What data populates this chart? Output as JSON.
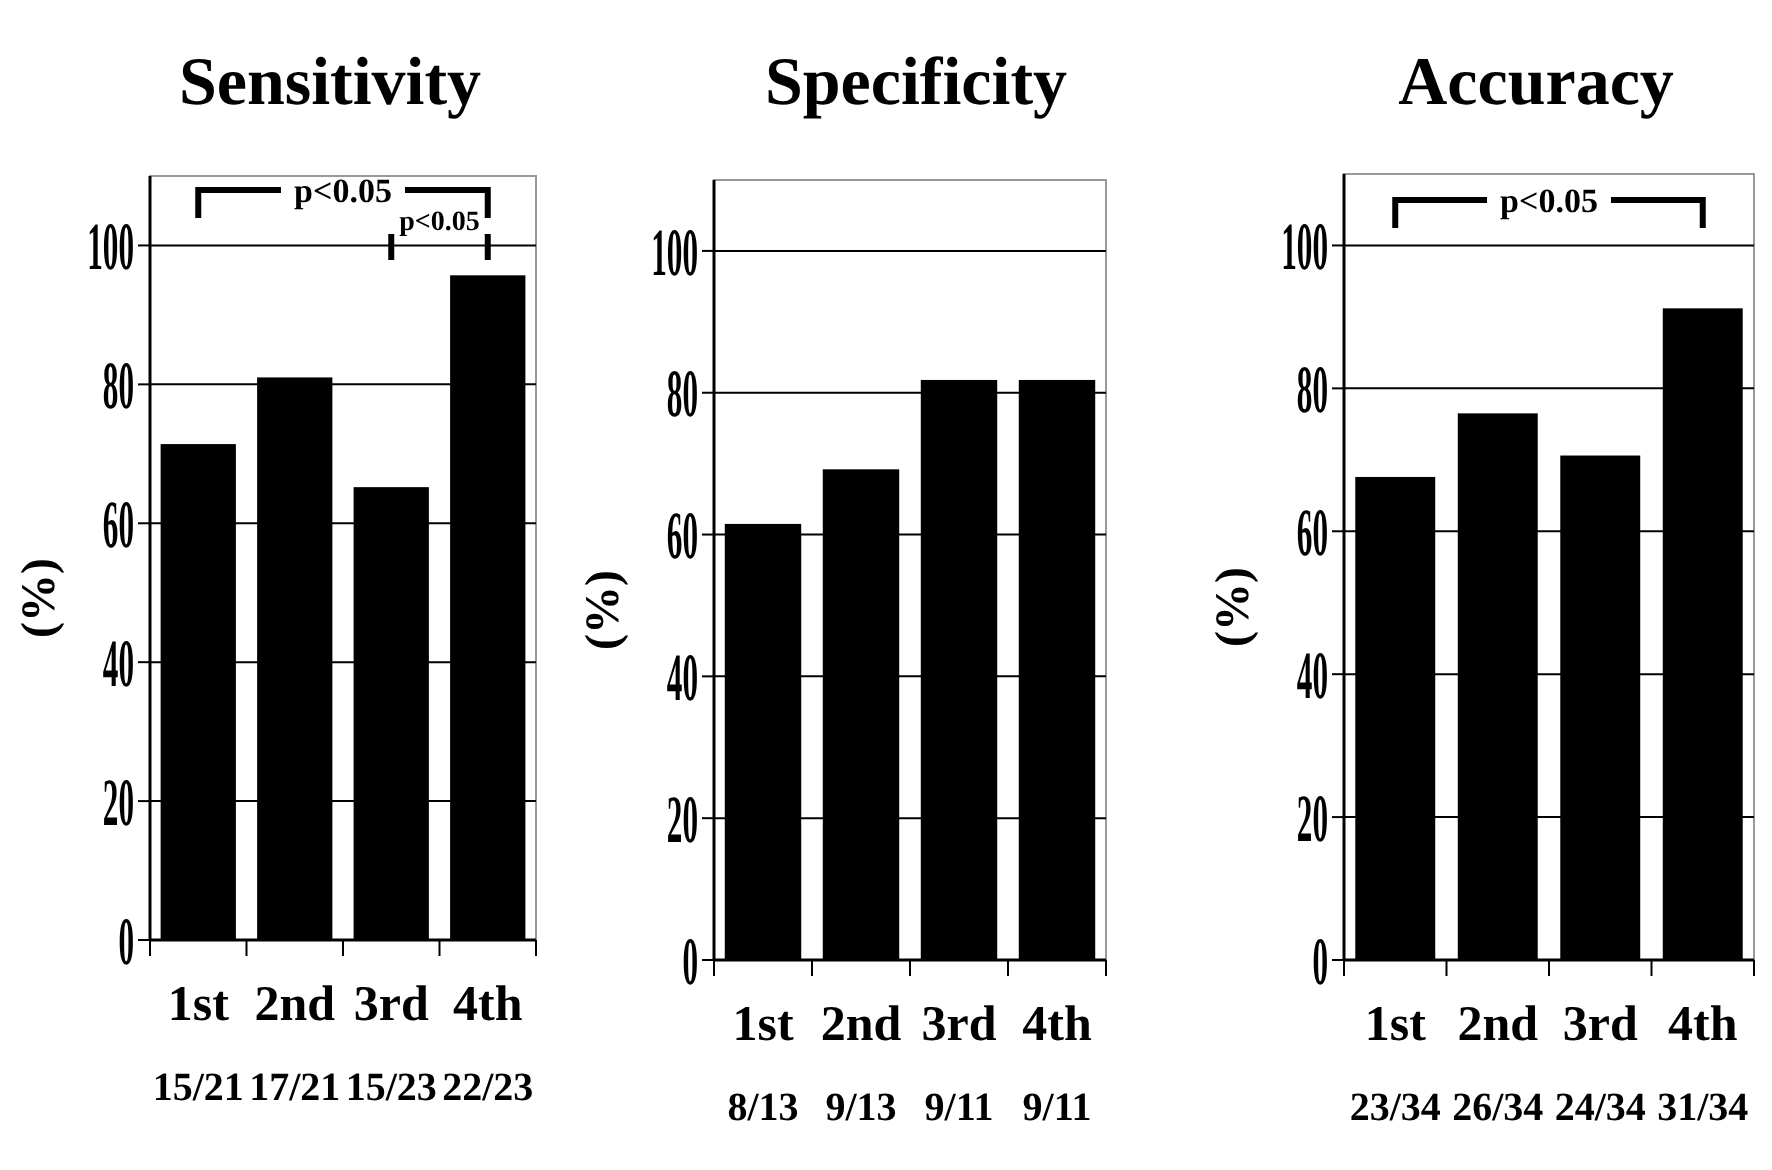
{
  "chart_data": [
    {
      "type": "bar",
      "title": "Sensitivity",
      "ylabel": "(%)",
      "categories": [
        "1st",
        "2nd",
        "3rd",
        "4th"
      ],
      "values": [
        71.4,
        81.0,
        65.2,
        95.7
      ],
      "color": "#000000",
      "ylim": [
        0,
        110
      ],
      "yticks": [
        0,
        20,
        40,
        60,
        80,
        100
      ],
      "grid": "y",
      "annotations": [
        "p<0.05",
        "p<0.05",
        "15/21",
        "17/21",
        "15/23",
        "22/23"
      ]
    },
    {
      "type": "bar",
      "title": "Specificity",
      "ylabel": "(%)",
      "categories": [
        "1st",
        "2nd",
        "3rd",
        "4th"
      ],
      "values": [
        61.5,
        69.2,
        81.8,
        81.8
      ],
      "color": "#000000",
      "ylim": [
        0,
        110
      ],
      "yticks": [
        0,
        20,
        40,
        60,
        80,
        100
      ],
      "grid": "y",
      "annotations": [
        "8/13",
        "9/13",
        "9/11",
        "9/11"
      ]
    },
    {
      "type": "bar",
      "title": "Accuracy",
      "ylabel": "(%)",
      "categories": [
        "1st",
        "2nd",
        "3rd",
        "4th"
      ],
      "values": [
        67.6,
        76.5,
        70.6,
        91.2
      ],
      "color": "#000000",
      "ylim": [
        0,
        110
      ],
      "yticks": [
        0,
        20,
        40,
        60,
        80,
        100
      ],
      "grid": "y",
      "annotations": [
        "p<0.05",
        "23/34",
        "26/34",
        "24/34",
        "31/34"
      ]
    }
  ]
}
